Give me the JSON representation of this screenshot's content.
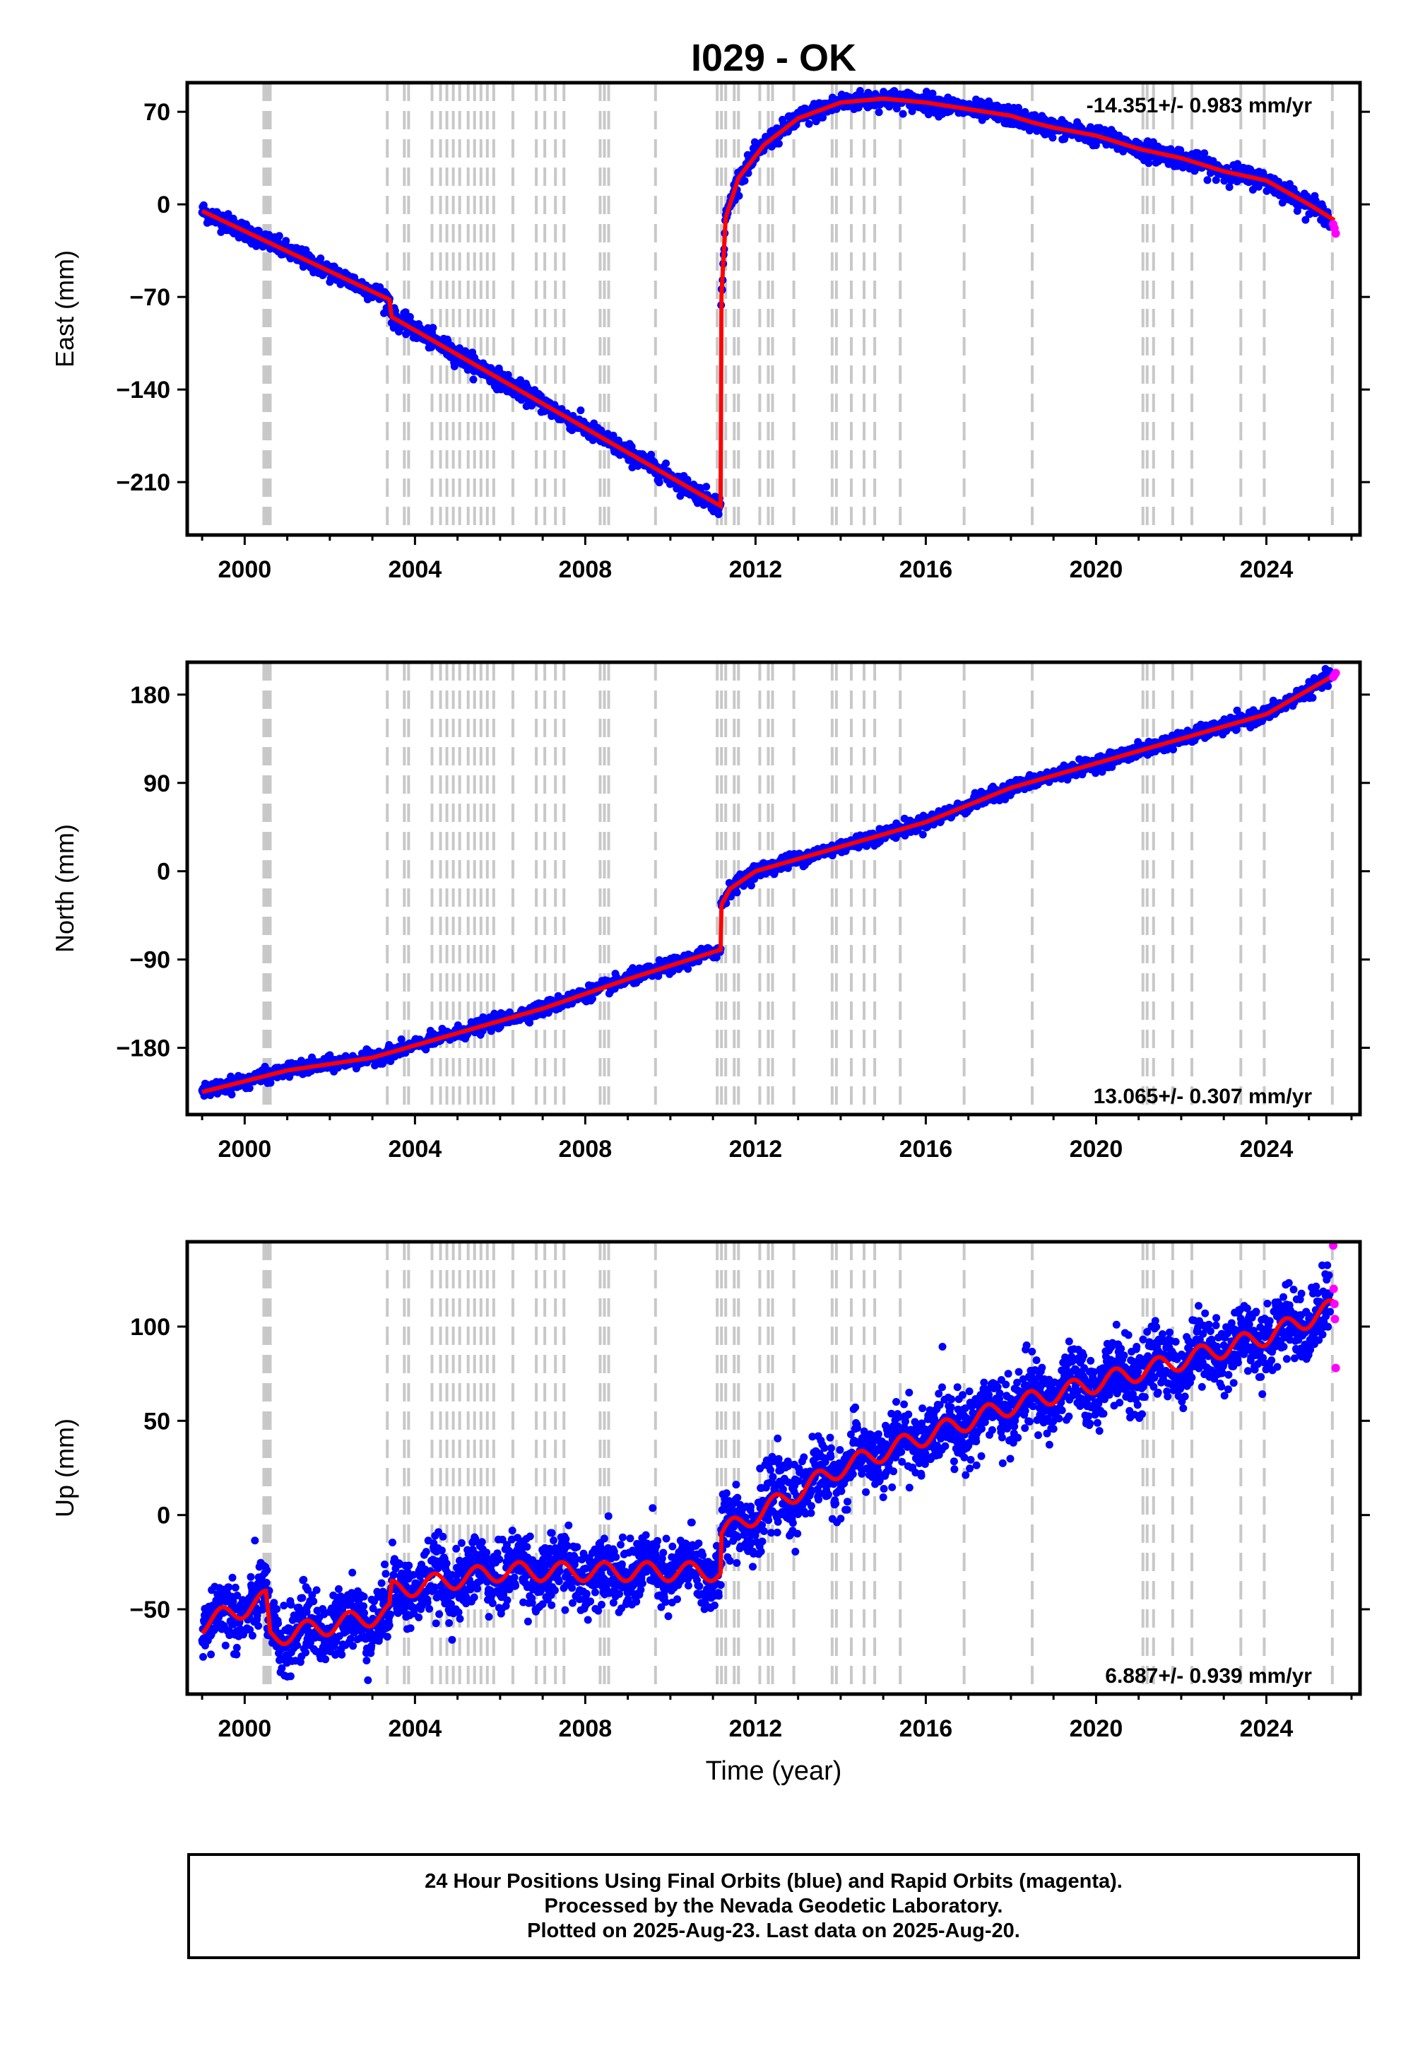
{
  "title": "I029 - OK",
  "xlabel": "Time (year)",
  "footer": {
    "line1": "24 Hour Positions Using Final Orbits (blue) and Rapid Orbits (magenta).",
    "line2": "Processed by the Nevada Geodetic Laboratory.",
    "line3": "Plotted on 2025-Aug-23. Last data on 2025-Aug-20."
  },
  "colors": {
    "final_orbits": "#0000ff",
    "rapid_orbits": "#ff00ff",
    "model": "#ff0000",
    "equipment_change": "#c8c8c8"
  },
  "chart_data": [
    {
      "type": "scatter",
      "panel": "east",
      "ylabel": "East (mm)",
      "xlim": [
        1998.65,
        2026.2
      ],
      "ylim": [
        -250,
        92
      ],
      "yticks": [
        -210,
        -140,
        -70,
        0,
        70
      ],
      "xticks": [
        2000,
        2004,
        2008,
        2012,
        2016,
        2020,
        2024
      ],
      "rate": "-14.351+/- 0.983 mm/yr",
      "rate_position": "top-right",
      "model_line": {
        "x": [
          1999.0,
          2003.4,
          2003.45,
          2011.18,
          2011.19,
          2011.3,
          2011.6,
          2012.2,
          2013.0,
          2014.0,
          2015.0,
          2016.0,
          2017.0,
          2018.0,
          2018.5,
          2019.0,
          2020.0,
          2021.0,
          2022.0,
          2023.0,
          2024.0,
          2025.0,
          2025.6
        ],
        "y": [
          -5,
          -72,
          -85,
          -228,
          -75,
          -10,
          20,
          45,
          65,
          77,
          80,
          77,
          72,
          67,
          62,
          58,
          52,
          42,
          35,
          25,
          18,
          0,
          -12
        ]
      },
      "final_orbits_range": [
        1999.0,
        2025.5
      ],
      "rapid_orbits": {
        "x": [
          2025.57,
          2025.6,
          2025.63
        ],
        "y": [
          -15,
          -18,
          -22
        ]
      }
    },
    {
      "type": "scatter",
      "panel": "north",
      "ylabel": "North (mm)",
      "xlim": [
        1998.65,
        2026.2
      ],
      "ylim": [
        -248,
        213
      ],
      "yticks": [
        -180,
        -90,
        0,
        90,
        180
      ],
      "xticks": [
        2000,
        2004,
        2008,
        2012,
        2016,
        2020,
        2024
      ],
      "rate": "13.065+/- 0.307 mm/yr",
      "rate_position": "bottom-right",
      "model_line": {
        "x": [
          1999.0,
          2001.0,
          2003.0,
          2005.0,
          2007.0,
          2009.0,
          2011.18,
          2011.19,
          2011.4,
          2012.0,
          2014.0,
          2016.0,
          2018.0,
          2020.0,
          2022.0,
          2024.0,
          2025.6
        ],
        "y": [
          -225,
          -203,
          -190,
          -165,
          -140,
          -110,
          -80,
          -35,
          -18,
          0,
          25,
          50,
          85,
          110,
          135,
          160,
          200
        ]
      },
      "final_orbits_range": [
        1999.0,
        2025.5
      ],
      "rapid_orbits": {
        "x": [
          2025.57,
          2025.6,
          2025.63
        ],
        "y": [
          198,
          200,
          202
        ]
      }
    },
    {
      "type": "scatter",
      "panel": "up",
      "ylabel": "Up (mm)",
      "xlim": [
        1998.65,
        2026.2
      ],
      "ylim": [
        -95,
        145
      ],
      "yticks": [
        -50,
        0,
        50,
        100
      ],
      "xticks": [
        2000,
        2004,
        2008,
        2012,
        2016,
        2020,
        2024
      ],
      "rate": "6.887+/- 0.939 mm/yr",
      "rate_position": "bottom-right",
      "model_line": {
        "x": [
          1999.0,
          2000.5,
          2000.6,
          2003.4,
          2003.45,
          2006.0,
          2008.0,
          2010.0,
          2011.18,
          2011.19,
          2012.0,
          2014.0,
          2016.0,
          2018.0,
          2020.0,
          2022.0,
          2024.0,
          2025.6
        ],
        "y": [
          -58,
          -45,
          -65,
          -52,
          -40,
          -30,
          -30,
          -30,
          -30,
          -10,
          0,
          25,
          42,
          58,
          70,
          82,
          95,
          110
        ]
      },
      "final_orbits_range": [
        1999.0,
        2025.5
      ],
      "rapid_orbits": {
        "x": [
          2025.57,
          2025.58,
          2025.6,
          2025.61,
          2025.63
        ],
        "y": [
          143,
          120,
          112,
          104,
          78
        ]
      }
    }
  ],
  "equipment_changes": [
    2000.45,
    2000.5,
    2000.55,
    2000.6,
    2003.35,
    2003.75,
    2003.85,
    2004.4,
    2004.6,
    2004.75,
    2004.9,
    2005.05,
    2005.25,
    2005.4,
    2005.55,
    2005.7,
    2005.85,
    2006.3,
    2006.85,
    2007.05,
    2007.3,
    2007.5,
    2008.35,
    2008.45,
    2008.55,
    2009.65,
    2011.1,
    2011.2,
    2011.3,
    2011.5,
    2011.6,
    2012.1,
    2012.3,
    2012.4,
    2012.9,
    2013.8,
    2013.9,
    2014.25,
    2014.55,
    2014.8,
    2015.4,
    2016.9,
    2018.5,
    2021.1,
    2021.2,
    2021.35,
    2021.8,
    2022.25,
    2023.4,
    2023.95,
    2025.55
  ]
}
